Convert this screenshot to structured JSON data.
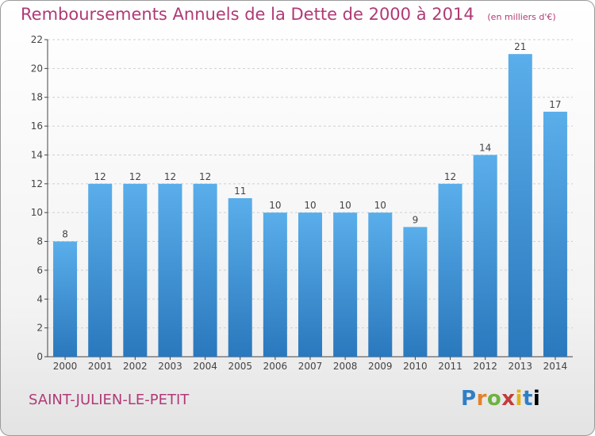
{
  "header": {
    "title": "Remboursements Annuels de la Dette de 2000 à 2014",
    "unit": "(en milliers d'€)"
  },
  "footer": {
    "place": "SAINT-JULIEN-LE-PETIT",
    "logo_letters": [
      "P",
      "r",
      "o",
      "x",
      "i",
      "t",
      "i"
    ]
  },
  "colors": {
    "title": "#b03a76",
    "bar_top": "#5aaeea",
    "bar_bottom": "#2a78bd",
    "axis": "#444444",
    "grid": "#cfcfcf"
  },
  "chart_data": {
    "type": "bar",
    "title": "Remboursements Annuels de la Dette de 2000 à 2014",
    "xlabel": "",
    "ylabel": "",
    "categories": [
      "2000",
      "2001",
      "2002",
      "2003",
      "2004",
      "2005",
      "2006",
      "2007",
      "2008",
      "2009",
      "2010",
      "2011",
      "2012",
      "2013",
      "2014"
    ],
    "values": [
      8,
      12,
      12,
      12,
      12,
      11,
      10,
      10,
      10,
      10,
      9,
      12,
      14,
      21,
      17
    ],
    "ylim": [
      0,
      22
    ],
    "yticks": [
      0,
      2,
      4,
      6,
      8,
      10,
      12,
      14,
      16,
      18,
      20,
      22
    ],
    "grid": "dashed",
    "legend": "none"
  }
}
